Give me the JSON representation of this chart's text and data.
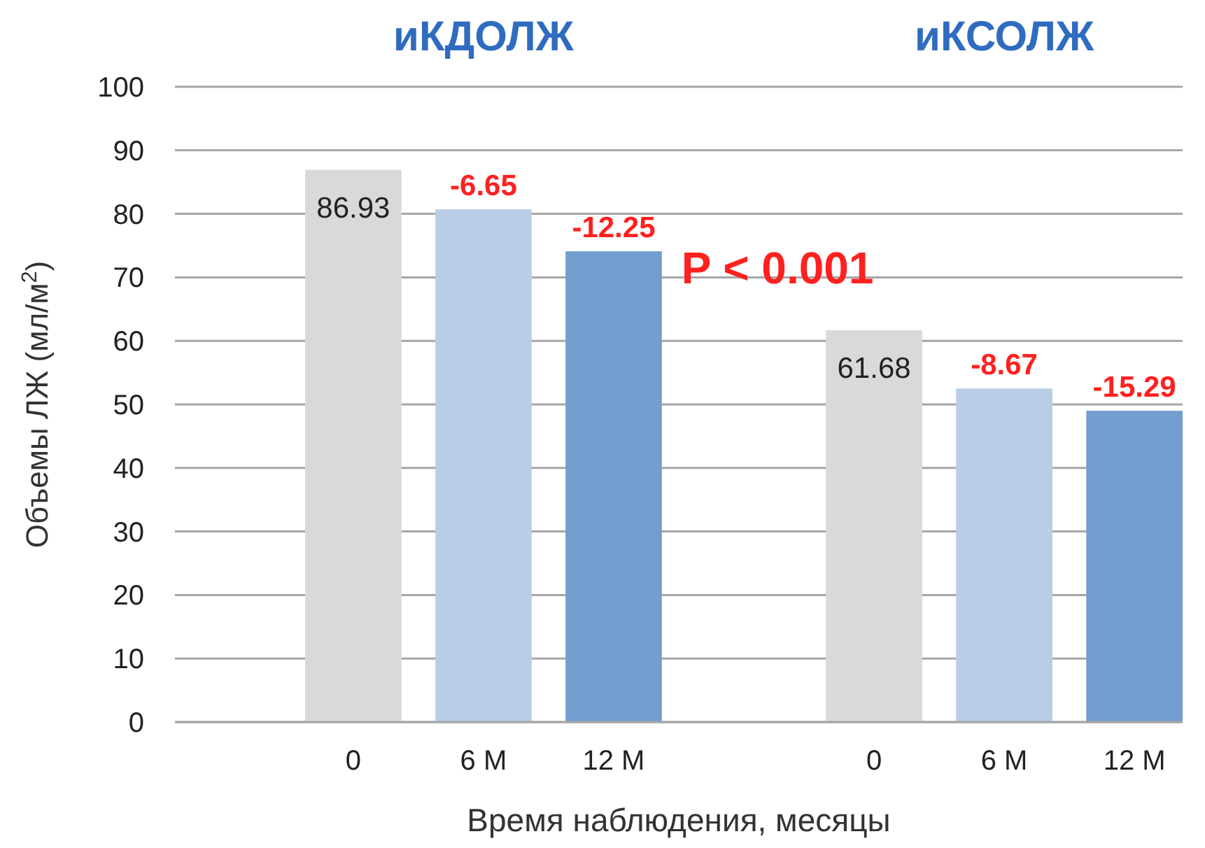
{
  "chart_data": {
    "type": "bar",
    "ylabel": "Объемы ЛЖ (мл/м$^{2}$)",
    "xlabel": "Время наблюдения, месяцы",
    "categories": [
      null,
      "0",
      "6 М",
      "12 М",
      null,
      "0",
      "6 М",
      "12 М"
    ],
    "values": [
      null,
      86.93,
      80.7,
      74.1,
      null,
      61.68,
      52.5,
      49.0
    ],
    "colors": [
      null,
      "#d9d9d9",
      "#b9cee6",
      "#729ecf",
      null,
      "#d9d9d9",
      "#b9cee6",
      "#729ecf"
    ],
    "value_labels": [
      null,
      "86.93",
      null,
      null,
      null,
      "61.68",
      null,
      null
    ],
    "annotations": [
      "иКДОЛЖ",
      "иКСОЛЖ",
      "P < 0.001",
      "-6.65",
      "-12.25",
      "-8.67",
      "-15.29"
    ],
    "ylim": [
      0,
      100
    ],
    "yticks": [
      0,
      10,
      20,
      30,
      40,
      50,
      60,
      70,
      80,
      90,
      100
    ],
    "grid": "y"
  }
}
